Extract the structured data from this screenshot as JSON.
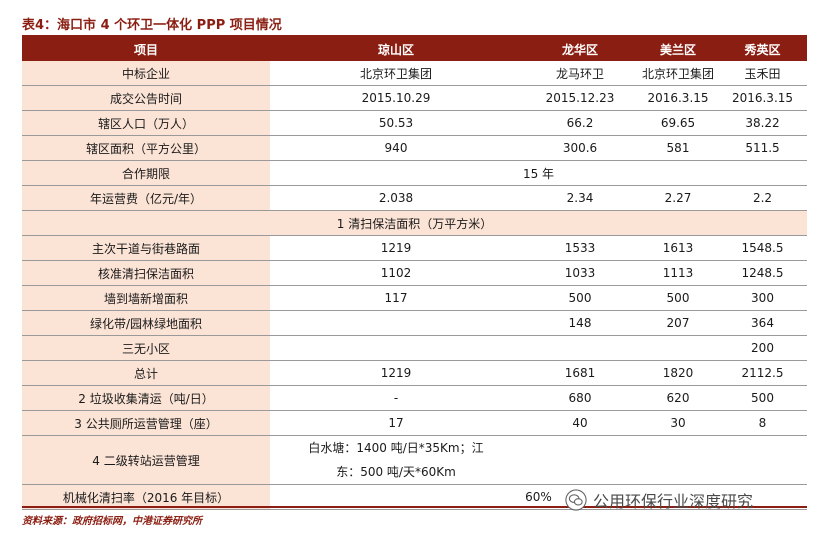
{
  "title": "表4：海口市 4 个环卫一体化 PPP 项目情况",
  "header": [
    "项目",
    "琼山区",
    "龙华区",
    "美兰区",
    "秀英区"
  ],
  "rows": {
    "winner": [
      "中标企业",
      "北京环卫集团",
      "龙马环卫",
      "北京环卫集团",
      "玉禾田"
    ],
    "date": [
      "成交公告时间",
      "2015.10.29",
      "2015.12.23",
      "2016.3.15",
      "2016.3.15"
    ],
    "population": [
      "辖区人口（万人）",
      "50.53",
      "66.2",
      "69.65",
      "38.22"
    ],
    "area": [
      "辖区面积（平方公里）",
      "940",
      "300.6",
      "581",
      "511.5"
    ],
    "term": [
      "合作期限",
      "15 年"
    ],
    "fee": [
      "年运营费（亿元/年）",
      "2.038",
      "2.34",
      "2.27",
      "2.2"
    ],
    "section1": "1 清扫保洁面积（万平方米）",
    "main_road": [
      "主次干道与街巷路面",
      "1219",
      "1533",
      "1613",
      "1548.5"
    ],
    "approved": [
      "核准清扫保洁面积",
      "1102",
      "1033",
      "1113",
      "1248.5"
    ],
    "wall": [
      "墙到墙新增面积",
      "117",
      "500",
      "500",
      "300"
    ],
    "green": [
      "绿化带/园林绿地面积",
      "",
      "148",
      "207",
      "364"
    ],
    "community": [
      "三无小区",
      "",
      "",
      "",
      "200"
    ],
    "total": [
      "总计",
      "1219",
      "1681",
      "1820",
      "2112.5"
    ],
    "garbage": [
      "2 垃圾收集清运（吨/日）",
      "-",
      "680",
      "620",
      "500"
    ],
    "toilet": [
      "3 公共厕所运营管理（座）",
      "17",
      "40",
      "30",
      "8"
    ],
    "transfer_label": "4 二级转站运营管理",
    "transfer_line1": "白水塘：1400 吨/日*35Km；江",
    "transfer_line2": "东：500 吨/天*60Km",
    "mech": [
      "机械化清扫率（2016 年目标）",
      "60%"
    ]
  },
  "source": "资料来源：政府招标网，中港证券研究所",
  "watermark": "公用环保行业深度研究",
  "colors": {
    "brand": "#8b1e12",
    "band": "#fbe3d6"
  }
}
